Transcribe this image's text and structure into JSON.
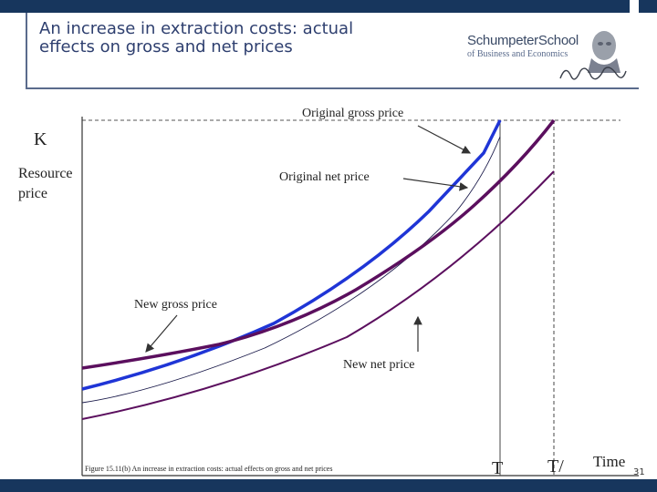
{
  "slide": {
    "title": "An increase in extraction costs: actual\neffects on gross and net prices",
    "logo_name": "SchumpeterSchool",
    "logo_sub": "of Business and Economics",
    "page_number": "31"
  },
  "diagram": {
    "labels": {
      "k": "K",
      "yaxis": "Resource\nprice",
      "orig_gross": "Original gross price",
      "orig_net": "Original net price",
      "new_gross": "New gross price",
      "new_net": "New net price",
      "t": "T",
      "t_prime": "T/",
      "time": "Time",
      "caption": "Figure 15.11(b) An increase in extraction costs: actual effects on gross and net prices"
    },
    "colors": {
      "original_gross": "#1f35d6",
      "new_gross": "#5b0f5e",
      "new_net": "#5b0f5e",
      "original_net": "#1a1a4a",
      "axis": "#333333"
    }
  }
}
